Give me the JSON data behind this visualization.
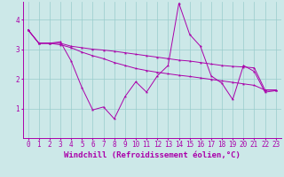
{
  "xlabel": "Windchill (Refroidissement éolien,°C)",
  "bg_color": "#cce8e8",
  "line_color": "#aa00aa",
  "xlim": [
    -0.5,
    23.5
  ],
  "ylim": [
    0,
    4.6
  ],
  "xticks": [
    0,
    1,
    2,
    3,
    4,
    5,
    6,
    7,
    8,
    9,
    10,
    11,
    12,
    13,
    14,
    15,
    16,
    17,
    18,
    19,
    20,
    21,
    22,
    23
  ],
  "yticks": [
    1,
    2,
    3,
    4
  ],
  "series": [
    [
      3.65,
      3.2,
      3.2,
      3.25,
      2.6,
      1.7,
      0.95,
      1.05,
      0.65,
      1.4,
      1.9,
      1.55,
      2.1,
      2.45,
      4.55,
      3.5,
      3.1,
      2.1,
      1.85,
      1.3,
      2.45,
      2.25,
      1.55,
      1.6
    ],
    [
      3.65,
      3.2,
      3.2,
      3.2,
      3.1,
      3.05,
      3.0,
      2.97,
      2.93,
      2.88,
      2.83,
      2.78,
      2.73,
      2.68,
      2.63,
      2.6,
      2.55,
      2.5,
      2.45,
      2.42,
      2.4,
      2.37,
      1.62,
      1.62
    ],
    [
      3.65,
      3.2,
      3.2,
      3.15,
      3.05,
      2.9,
      2.78,
      2.68,
      2.55,
      2.45,
      2.35,
      2.28,
      2.22,
      2.17,
      2.12,
      2.08,
      2.03,
      1.98,
      1.93,
      1.88,
      1.83,
      1.78,
      1.62,
      1.62
    ]
  ],
  "grid_color": "#99cccc",
  "tick_fontsize": 5.5,
  "label_fontsize": 6.5
}
